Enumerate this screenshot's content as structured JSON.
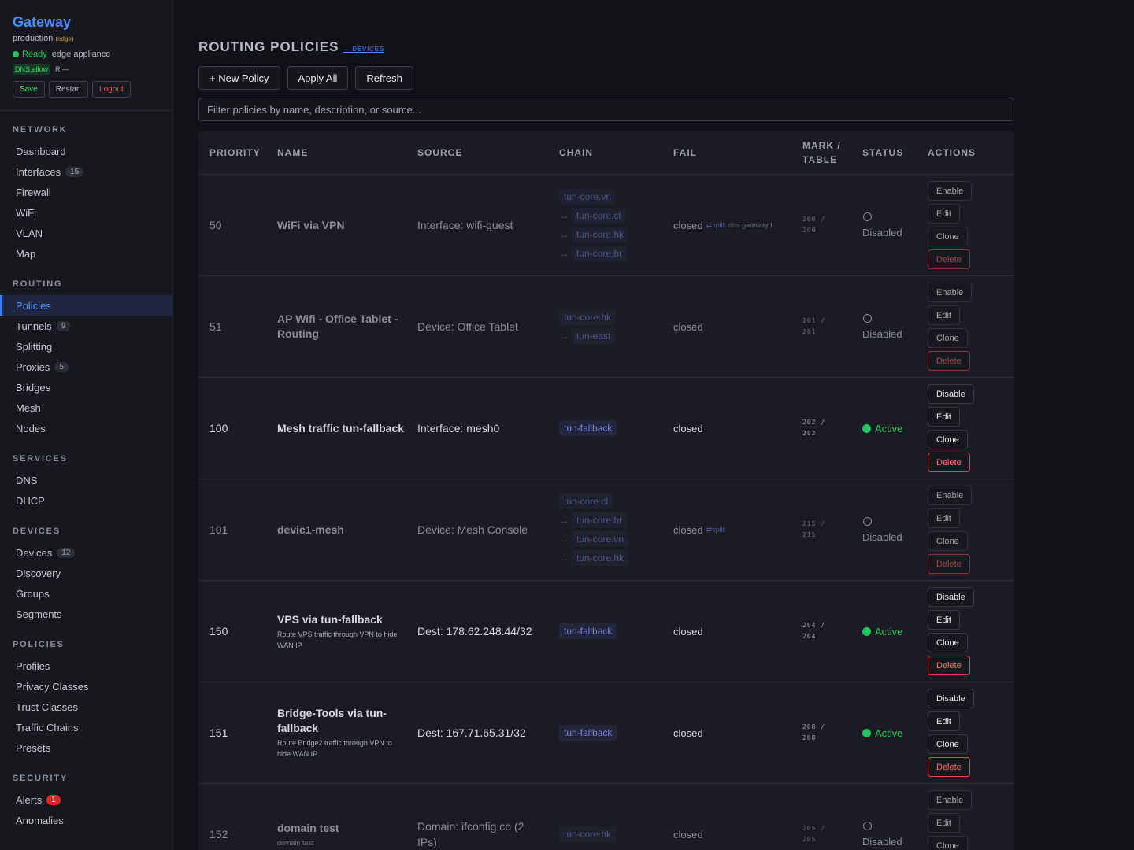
{
  "sidebar": {
    "brand_title": "Gateway",
    "env": "production",
    "env_tag": "(edge)",
    "status_ready": "Ready",
    "appliance": "edge appliance",
    "dns_chip": "DNS:allow",
    "r_text": "R:—",
    "buttons": {
      "save": "Save",
      "restart": "Restart",
      "logout": "Logout"
    },
    "sections": [
      {
        "header": "NETWORK",
        "items": [
          {
            "label": "Dashboard"
          },
          {
            "label": "Interfaces",
            "count": "15"
          },
          {
            "label": "Firewall"
          },
          {
            "label": "WiFi"
          },
          {
            "label": "VLAN"
          },
          {
            "label": "Map"
          }
        ]
      },
      {
        "header": "ROUTING",
        "items": [
          {
            "label": "Policies"
          },
          {
            "label": "Tunnels",
            "count": "9"
          },
          {
            "label": "Splitting"
          },
          {
            "label": "Proxies",
            "count": "5"
          },
          {
            "label": "Bridges"
          },
          {
            "label": "Mesh"
          },
          {
            "label": "Nodes"
          }
        ]
      },
      {
        "header": "SERVICES",
        "items": [
          {
            "label": "DNS"
          },
          {
            "label": "DHCP"
          }
        ]
      },
      {
        "header": "DEVICES",
        "items": [
          {
            "label": "Devices",
            "count": "12"
          },
          {
            "label": "Discovery"
          },
          {
            "label": "Groups"
          },
          {
            "label": "Segments"
          }
        ]
      },
      {
        "header": "POLICIES",
        "items": [
          {
            "label": "Profiles"
          },
          {
            "label": "Privacy Classes"
          },
          {
            "label": "Trust Classes"
          },
          {
            "label": "Traffic Chains"
          },
          {
            "label": "Presets"
          }
        ]
      },
      {
        "header": "SECURITY",
        "items": [
          {
            "label": "Alerts",
            "count": "1"
          },
          {
            "label": "Anomalies"
          }
        ]
      }
    ]
  },
  "main": {
    "title": "ROUTING POLICIES",
    "devices_link": "→ DEVICES",
    "toolbar": {
      "new_policy": "+ New Policy",
      "apply_all": "Apply All",
      "refresh": "Refresh"
    },
    "filter_placeholder": "Filter policies by name, description, or source...",
    "columns": {
      "priority": "PRIORITY",
      "name": "NAME",
      "source": "SOURCE",
      "chain": "CHAIN",
      "fail": "FAIL",
      "mark_a": "MARK /",
      "mark_b": "TABLE",
      "status": "STATUS",
      "actions": "ACTIONS"
    },
    "actions": {
      "enable": "Enable",
      "disable": "Disable",
      "edit": "Edit",
      "clone": "Clone",
      "delete": "Delete"
    },
    "arrow": "→",
    "rows": [
      {
        "priority": "50",
        "name": "WiFi via VPN",
        "desc": "",
        "source": "Interface: wifi-guest",
        "chain": [
          "tun-core.vn",
          "tun-core.cl",
          "tun-core.hk",
          "tun-core.br"
        ],
        "fail": "closed",
        "fail_tag": "⇄split",
        "fail_dns": "dns:gatewayd",
        "mark": "200 /",
        "table": "200",
        "status": "Disabled",
        "toggle": "Enable"
      },
      {
        "priority": "51",
        "name": "AP Wifi - Office Tablet - Routing",
        "desc": "",
        "source": "Device: Office Tablet",
        "chain": [
          "tun-core.hk",
          "tun-east"
        ],
        "fail": "closed",
        "fail_tag": "",
        "fail_dns": "",
        "mark": "201 /",
        "table": "201",
        "status": "Disabled",
        "toggle": "Enable"
      },
      {
        "priority": "100",
        "name": "Mesh traffic tun-fallback",
        "desc": "",
        "source": "Interface: mesh0",
        "chain": [
          "tun-fallback"
        ],
        "fail": "closed",
        "fail_tag": "",
        "fail_dns": "",
        "mark": "202 /",
        "table": "202",
        "status": "Active",
        "toggle": "Disable"
      },
      {
        "priority": "101",
        "name": "devic1-mesh",
        "desc": "",
        "source": "Device: Mesh Console",
        "chain": [
          "tun-core.cl",
          "tun-core.br",
          "tun-core.vn",
          "tun-core.hk"
        ],
        "fail": "closed",
        "fail_tag": "⇄split",
        "fail_dns": "",
        "mark": "215 /",
        "table": "215",
        "status": "Disabled",
        "toggle": "Enable"
      },
      {
        "priority": "150",
        "name": "VPS via tun-fallback",
        "desc": "Route VPS traffic through VPN to hide WAN IP",
        "source": "Dest: 178.62.248.44/32",
        "chain": [
          "tun-fallback"
        ],
        "fail": "closed",
        "fail_tag": "",
        "fail_dns": "",
        "mark": "204 /",
        "table": "204",
        "status": "Active",
        "toggle": "Disable"
      },
      {
        "priority": "151",
        "name": "Bridge-Tools via tun-fallback",
        "desc": "Route Bridge2 traffic through VPN to hide WAN IP",
        "source": "Dest: 167.71.65.31/32",
        "chain": [
          "tun-fallback"
        ],
        "fail": "closed",
        "fail_tag": "",
        "fail_dns": "",
        "mark": "208 /",
        "table": "208",
        "status": "Active",
        "toggle": "Disable"
      },
      {
        "priority": "152",
        "name": "domain test",
        "desc": "domain test",
        "source": "Domain: ifconfig.co (2 IPs)",
        "chain": [
          "tun-core.hk"
        ],
        "fail": "closed",
        "fail_tag": "",
        "fail_dns": "",
        "mark": "205 /",
        "table": "205",
        "status": "Disabled",
        "toggle": "Enable"
      }
    ]
  }
}
